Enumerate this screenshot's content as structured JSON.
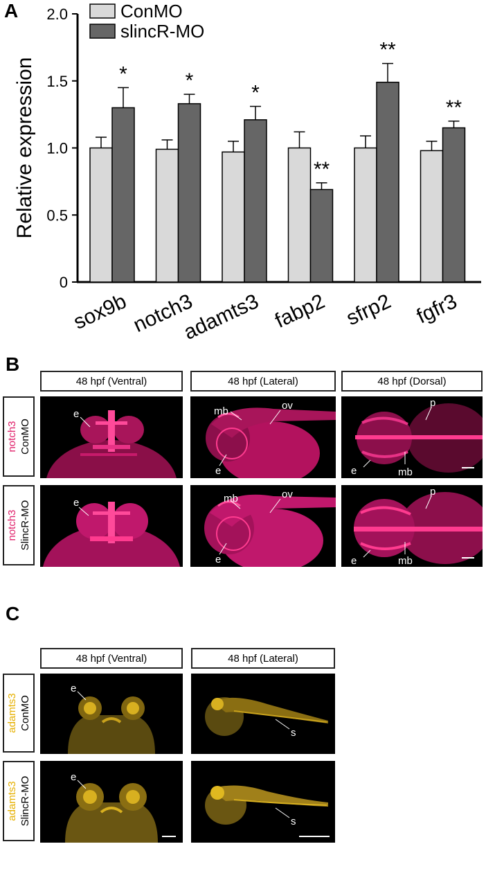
{
  "figure": {
    "panels": [
      "A",
      "B",
      "C"
    ]
  },
  "chart_data": {
    "type": "bar",
    "categories": [
      "sox9b",
      "notch3",
      "adamts3",
      "fabp2",
      "sfrp2",
      "fgfr3"
    ],
    "series": [
      {
        "name": "ConMO",
        "values": [
          1.0,
          0.99,
          0.97,
          1.0,
          1.0,
          0.98
        ],
        "errors": [
          0.08,
          0.07,
          0.08,
          0.12,
          0.09,
          0.07
        ]
      },
      {
        "name": "slincR-MO",
        "values": [
          1.3,
          1.33,
          1.21,
          0.69,
          1.49,
          1.15
        ],
        "errors": [
          0.15,
          0.07,
          0.1,
          0.05,
          0.14,
          0.05
        ]
      }
    ],
    "significance": [
      "*",
      "*",
      "*",
      "**",
      "**",
      "**"
    ],
    "ylabel": "Relative expression",
    "ylim": [
      0,
      2.0
    ],
    "yticks": [
      "0",
      "0.5",
      "1.0",
      "1.5",
      "2.0"
    ],
    "legend_position": "top-left",
    "colors": {
      "ConMO": "#d9d9d9",
      "slincR-MO": "#666666"
    }
  },
  "panel_b": {
    "headers": [
      "48 hpf (Ventral)",
      "48 hpf (Lateral)",
      "48 hpf (Dorsal)"
    ],
    "rows": [
      {
        "gene": "notch3",
        "condition": "ConMO"
      },
      {
        "gene": "notch3",
        "condition": "SlincR-MO"
      }
    ],
    "gene_color": "#e0206a",
    "annotations": {
      "e": "e",
      "mb": "mb",
      "ov": "ov",
      "p": "p"
    }
  },
  "panel_c": {
    "headers": [
      "48 hpf (Ventral)",
      "48 hpf (Lateral)"
    ],
    "rows": [
      {
        "gene": "adamts3",
        "condition": "ConMO"
      },
      {
        "gene": "adamts3",
        "condition": "SlincR-MO"
      }
    ],
    "gene_color": "#e6b000",
    "annotations": {
      "e": "e",
      "s": "s"
    }
  }
}
